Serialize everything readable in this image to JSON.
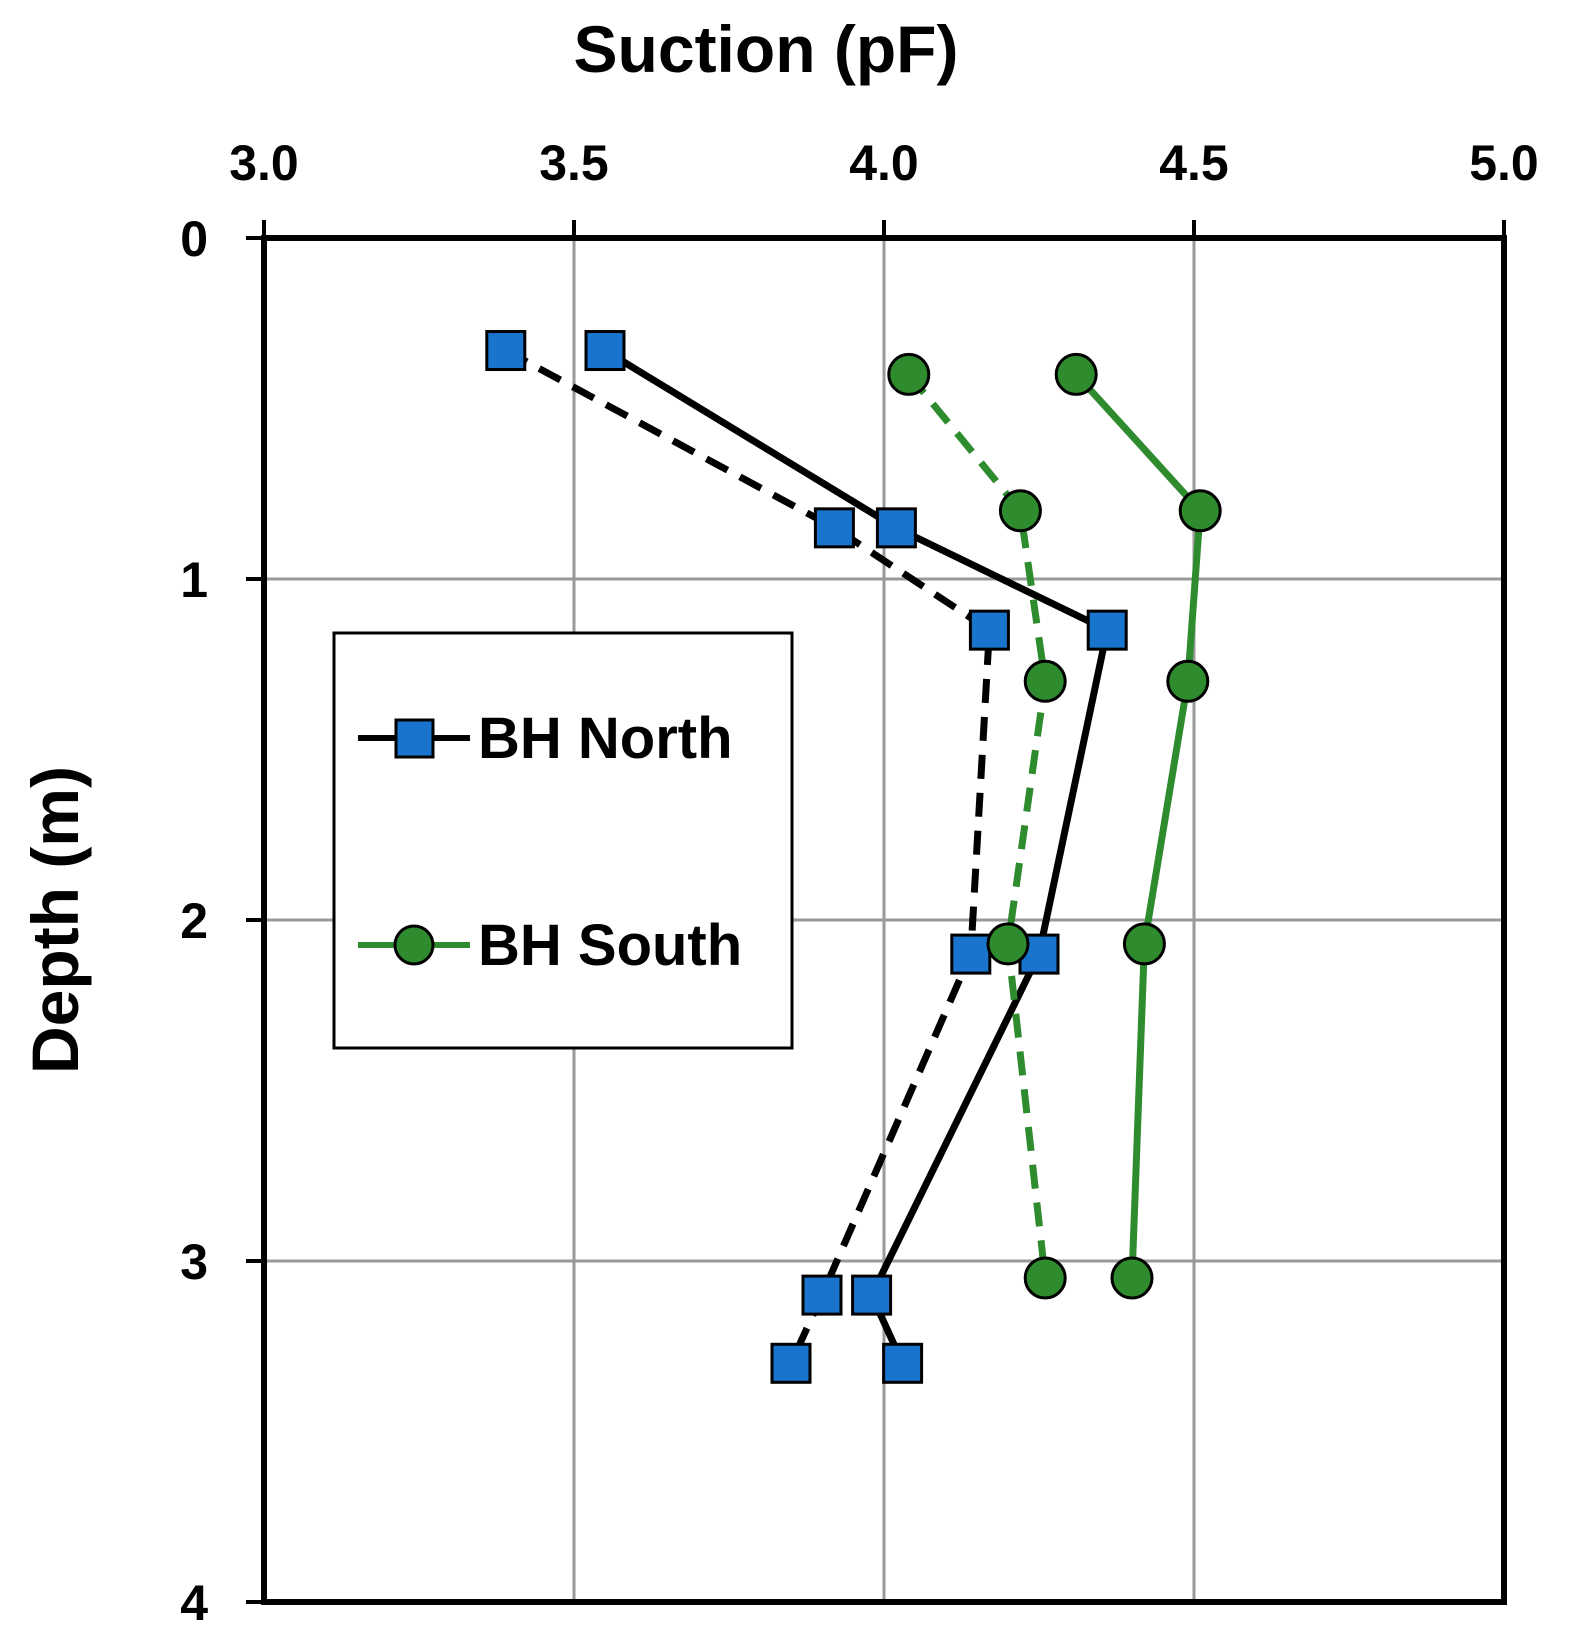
{
  "chart_data": {
    "type": "scatter",
    "xlabel": "Suction (pF)",
    "ylabel": "Depth (m)",
    "xlim": [
      3.0,
      5.0
    ],
    "ylim": [
      4,
      0
    ],
    "x_ticks": [
      "3.0",
      "3.5",
      "4.0",
      "4.5",
      "5.0"
    ],
    "y_ticks": [
      "0",
      "1",
      "2",
      "3",
      "4"
    ],
    "x_axis_position": "top",
    "y_reversed": true,
    "grid": true,
    "legend": {
      "position": "left-middle",
      "entries": [
        "BH North",
        "BH South"
      ]
    },
    "series": [
      {
        "name": "BH North",
        "line": "solid",
        "line_color": "#000000",
        "marker": "square",
        "marker_color": "#1874CD",
        "points": [
          [
            3.55,
            0.33
          ],
          [
            4.02,
            0.85
          ],
          [
            4.36,
            1.15
          ],
          [
            4.25,
            2.1
          ],
          [
            3.98,
            3.1
          ],
          [
            4.03,
            3.3
          ]
        ]
      },
      {
        "line": "dashed",
        "line_color": "#000000",
        "marker": "square",
        "marker_color": "#1874CD",
        "points": [
          [
            3.39,
            0.33
          ],
          [
            3.92,
            0.85
          ],
          [
            4.17,
            1.15
          ],
          [
            4.14,
            2.1
          ],
          [
            3.9,
            3.1
          ],
          [
            3.85,
            3.3
          ]
        ]
      },
      {
        "name": "BH South",
        "line": "solid",
        "line_color": "#2E8B2E",
        "marker": "circle",
        "marker_color": "#2E8B2E",
        "points": [
          [
            4.31,
            0.4
          ],
          [
            4.51,
            0.8
          ],
          [
            4.49,
            1.3
          ],
          [
            4.42,
            2.07
          ],
          [
            4.4,
            3.05
          ]
        ]
      },
      {
        "line": "dashed",
        "line_color": "#2E8B2E",
        "marker": "circle",
        "marker_color": "#2E8B2E",
        "points": [
          [
            4.04,
            0.4
          ],
          [
            4.22,
            0.8
          ],
          [
            4.26,
            1.3
          ],
          [
            4.2,
            2.07
          ],
          [
            4.26,
            3.05
          ]
        ]
      }
    ]
  }
}
